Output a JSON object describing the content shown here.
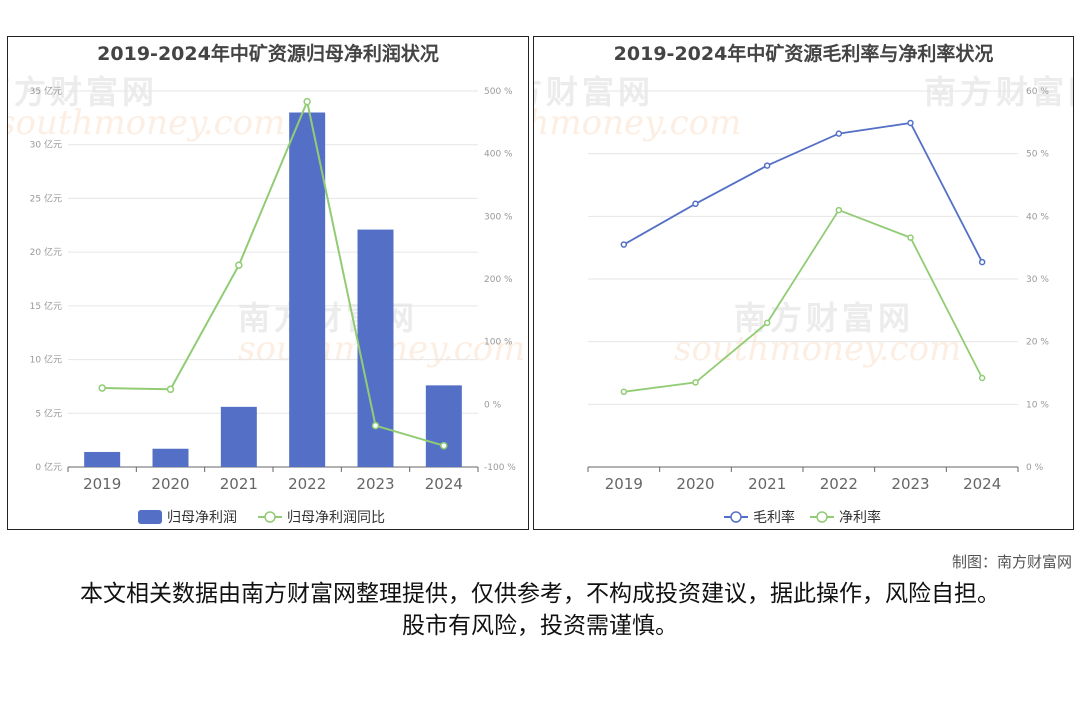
{
  "credit": "制图：南方财富网",
  "disclaimer": "本文相关数据由南方财富网整理提供，仅供参考，不构成投资建议，据此操作，风险自担。股市有风险，投资需谨慎。",
  "watermark": {
    "cn": "南方财富网",
    "en": "southmoney.com"
  },
  "colors": {
    "blue": "#5470c6",
    "green": "#91cc75",
    "axis": "#999999",
    "grid": "#e6e6e6"
  },
  "chart_data": [
    {
      "type": "bar",
      "title": "2019-2024年中矿资源归母净利润状况",
      "categories": [
        "2019",
        "2020",
        "2021",
        "2022",
        "2023",
        "2024"
      ],
      "ylim_left": [
        0,
        35
      ],
      "left_ticks": [
        "0 亿元",
        "5 亿元",
        "10 亿元",
        "15 亿元",
        "20 亿元",
        "25 亿元",
        "30 亿元",
        "35 亿元"
      ],
      "ylim_right": [
        -100,
        500
      ],
      "right_ticks": [
        "-100 %",
        "0 %",
        "100 %",
        "200 %",
        "300 %",
        "400 %",
        "500 %"
      ],
      "series": [
        {
          "name": "归母净利润",
          "type": "bar",
          "axis": "left",
          "values": [
            1.4,
            1.7,
            5.6,
            33.0,
            22.1,
            7.6
          ]
        },
        {
          "name": "归母净利润同比",
          "type": "line",
          "axis": "right",
          "values": [
            26,
            24,
            222,
            483,
            -34,
            -66
          ]
        }
      ],
      "grid": true,
      "legend": "bottom-center"
    },
    {
      "type": "line",
      "title": "2019-2024年中矿资源毛利率与净利率状况",
      "categories": [
        "2019",
        "2020",
        "2021",
        "2022",
        "2023",
        "2024"
      ],
      "ylim_right": [
        0,
        60
      ],
      "right_ticks": [
        "0 %",
        "10 %",
        "20 %",
        "30 %",
        "40 %",
        "50 %",
        "60 %"
      ],
      "series": [
        {
          "name": "毛利率",
          "values": [
            35.5,
            42.0,
            48.1,
            53.2,
            54.9,
            32.7
          ]
        },
        {
          "name": "净利率",
          "values": [
            12.0,
            13.5,
            23.0,
            41.0,
            36.6,
            14.2
          ]
        }
      ],
      "grid": true,
      "legend": "bottom-center"
    }
  ]
}
